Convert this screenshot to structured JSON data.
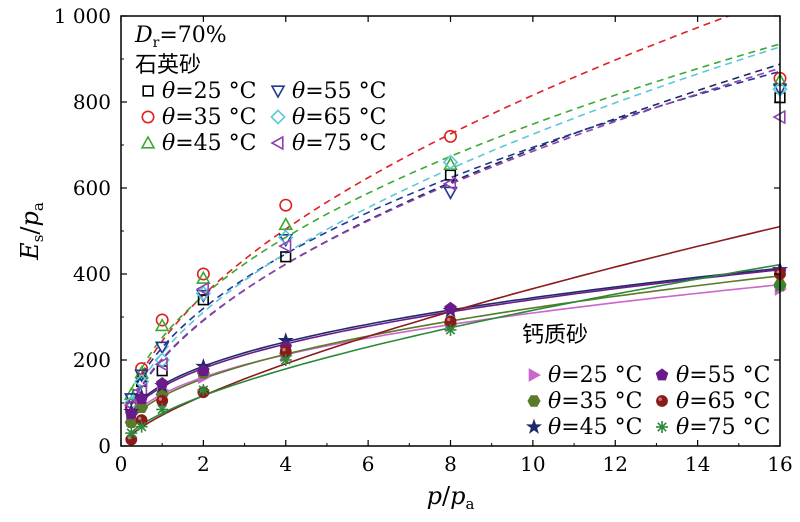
{
  "chart_data": {
    "type": "scatter",
    "xlabel": {
      "main": "p",
      "sub": "",
      "sep": "/",
      "main2": "p",
      "sub2": "a"
    },
    "ylabel": {
      "main": "E",
      "sub": "s",
      "sep": "/",
      "main2": "p",
      "sub2": "a"
    },
    "xlim": [
      0,
      16
    ],
    "ylim": [
      0,
      1000
    ],
    "xticks": [
      0,
      2,
      4,
      6,
      8,
      10,
      12,
      14,
      16
    ],
    "yticks": [
      0,
      200,
      400,
      600,
      800,
      1000
    ],
    "yticklabels": [
      "0",
      "200",
      "400",
      "600",
      "800",
      "1 000"
    ],
    "annotation": {
      "prefix": "D",
      "sub": "r",
      "suffix": "=70%"
    },
    "legend_groups": [
      {
        "title": "石英砂",
        "placement": "top-left"
      },
      {
        "title": "钙质砂",
        "placement": "bottom-right"
      }
    ],
    "x": [
      0.25,
      0.5,
      1,
      2,
      4,
      8,
      16
    ],
    "series": [
      {
        "group": 0,
        "theta": "θ",
        "name": "=25 °C",
        "marker": "square-open",
        "color": "#000000",
        "curve": "#1a2a5a",
        "dash": true,
        "y": [
          90,
          150,
          175,
          340,
          440,
          630,
          810
        ]
      },
      {
        "group": 0,
        "theta": "θ",
        "name": "=35 °C",
        "marker": "circle-open",
        "color": "#e02020",
        "curve": "#e02020",
        "dash": true,
        "y": [
          90,
          180,
          293,
          400,
          560,
          720,
          855
        ]
      },
      {
        "group": 0,
        "theta": "θ",
        "name": "=45 °C",
        "marker": "triangle-up-open",
        "color": "#3aaa35",
        "curve": "#3aaa35",
        "dash": true,
        "y": [
          120,
          170,
          280,
          390,
          515,
          655,
          850
        ]
      },
      {
        "group": 0,
        "theta": "θ",
        "name": "=55 °C",
        "marker": "triangle-down-open",
        "color": "#1f3a93",
        "curve": "#1f3a93",
        "dash": true,
        "y": [
          110,
          165,
          230,
          350,
          480,
          590,
          830
        ]
      },
      {
        "group": 0,
        "theta": "θ",
        "name": "=65 °C",
        "marker": "diamond-open",
        "color": "#5bc8d8",
        "curve": "#5bc8d8",
        "dash": true,
        "y": [
          100,
          150,
          200,
          355,
          485,
          660,
          830
        ]
      },
      {
        "group": 0,
        "theta": "θ",
        "name": "=75 °C",
        "marker": "triangle-left-open",
        "color": "#9040b0",
        "curve": "#9040b0",
        "dash": true,
        "y": [
          95,
          130,
          190,
          365,
          465,
          610,
          765
        ]
      },
      {
        "group": 1,
        "theta": "θ",
        "name": "=25 °C",
        "marker": "triangle-right-filled",
        "color": "#cc66cc",
        "curve": "#cc66cc",
        "dash": false,
        "y": [
          60,
          100,
          130,
          160,
          210,
          280,
          365
        ]
      },
      {
        "group": 1,
        "theta": "θ",
        "name": "=35 °C",
        "marker": "hexagon-filled",
        "color": "#5a7a2a",
        "curve": "#5a7a2a",
        "dash": false,
        "y": [
          55,
          90,
          120,
          170,
          215,
          285,
          375
        ]
      },
      {
        "group": 1,
        "theta": "θ",
        "name": "=45 °C",
        "marker": "star-filled",
        "color": "#1f2a6a",
        "curve": "#1f2a6a",
        "dash": false,
        "y": [
          80,
          115,
          140,
          185,
          245,
          315,
          410
        ]
      },
      {
        "group": 1,
        "theta": "θ",
        "name": "=55 °C",
        "marker": "pentagon-filled",
        "color": "#6a1a8a",
        "curve": "#6a1a8a",
        "dash": false,
        "y": [
          75,
          110,
          145,
          175,
          230,
          320,
          405
        ]
      },
      {
        "group": 1,
        "theta": "θ",
        "name": "=65 °C",
        "marker": "sphere-filled",
        "color": "#8b1a1a",
        "curve": "#8b1a1a",
        "dash": false,
        "y": [
          15,
          60,
          105,
          125,
          220,
          290,
          400
        ]
      },
      {
        "group": 1,
        "theta": "θ",
        "name": "=75 °C",
        "marker": "asterisk",
        "color": "#2a8a3a",
        "curve": "#2a8a3a",
        "dash": false,
        "y": [
          30,
          45,
          85,
          130,
          200,
          270,
          370
        ]
      }
    ]
  }
}
